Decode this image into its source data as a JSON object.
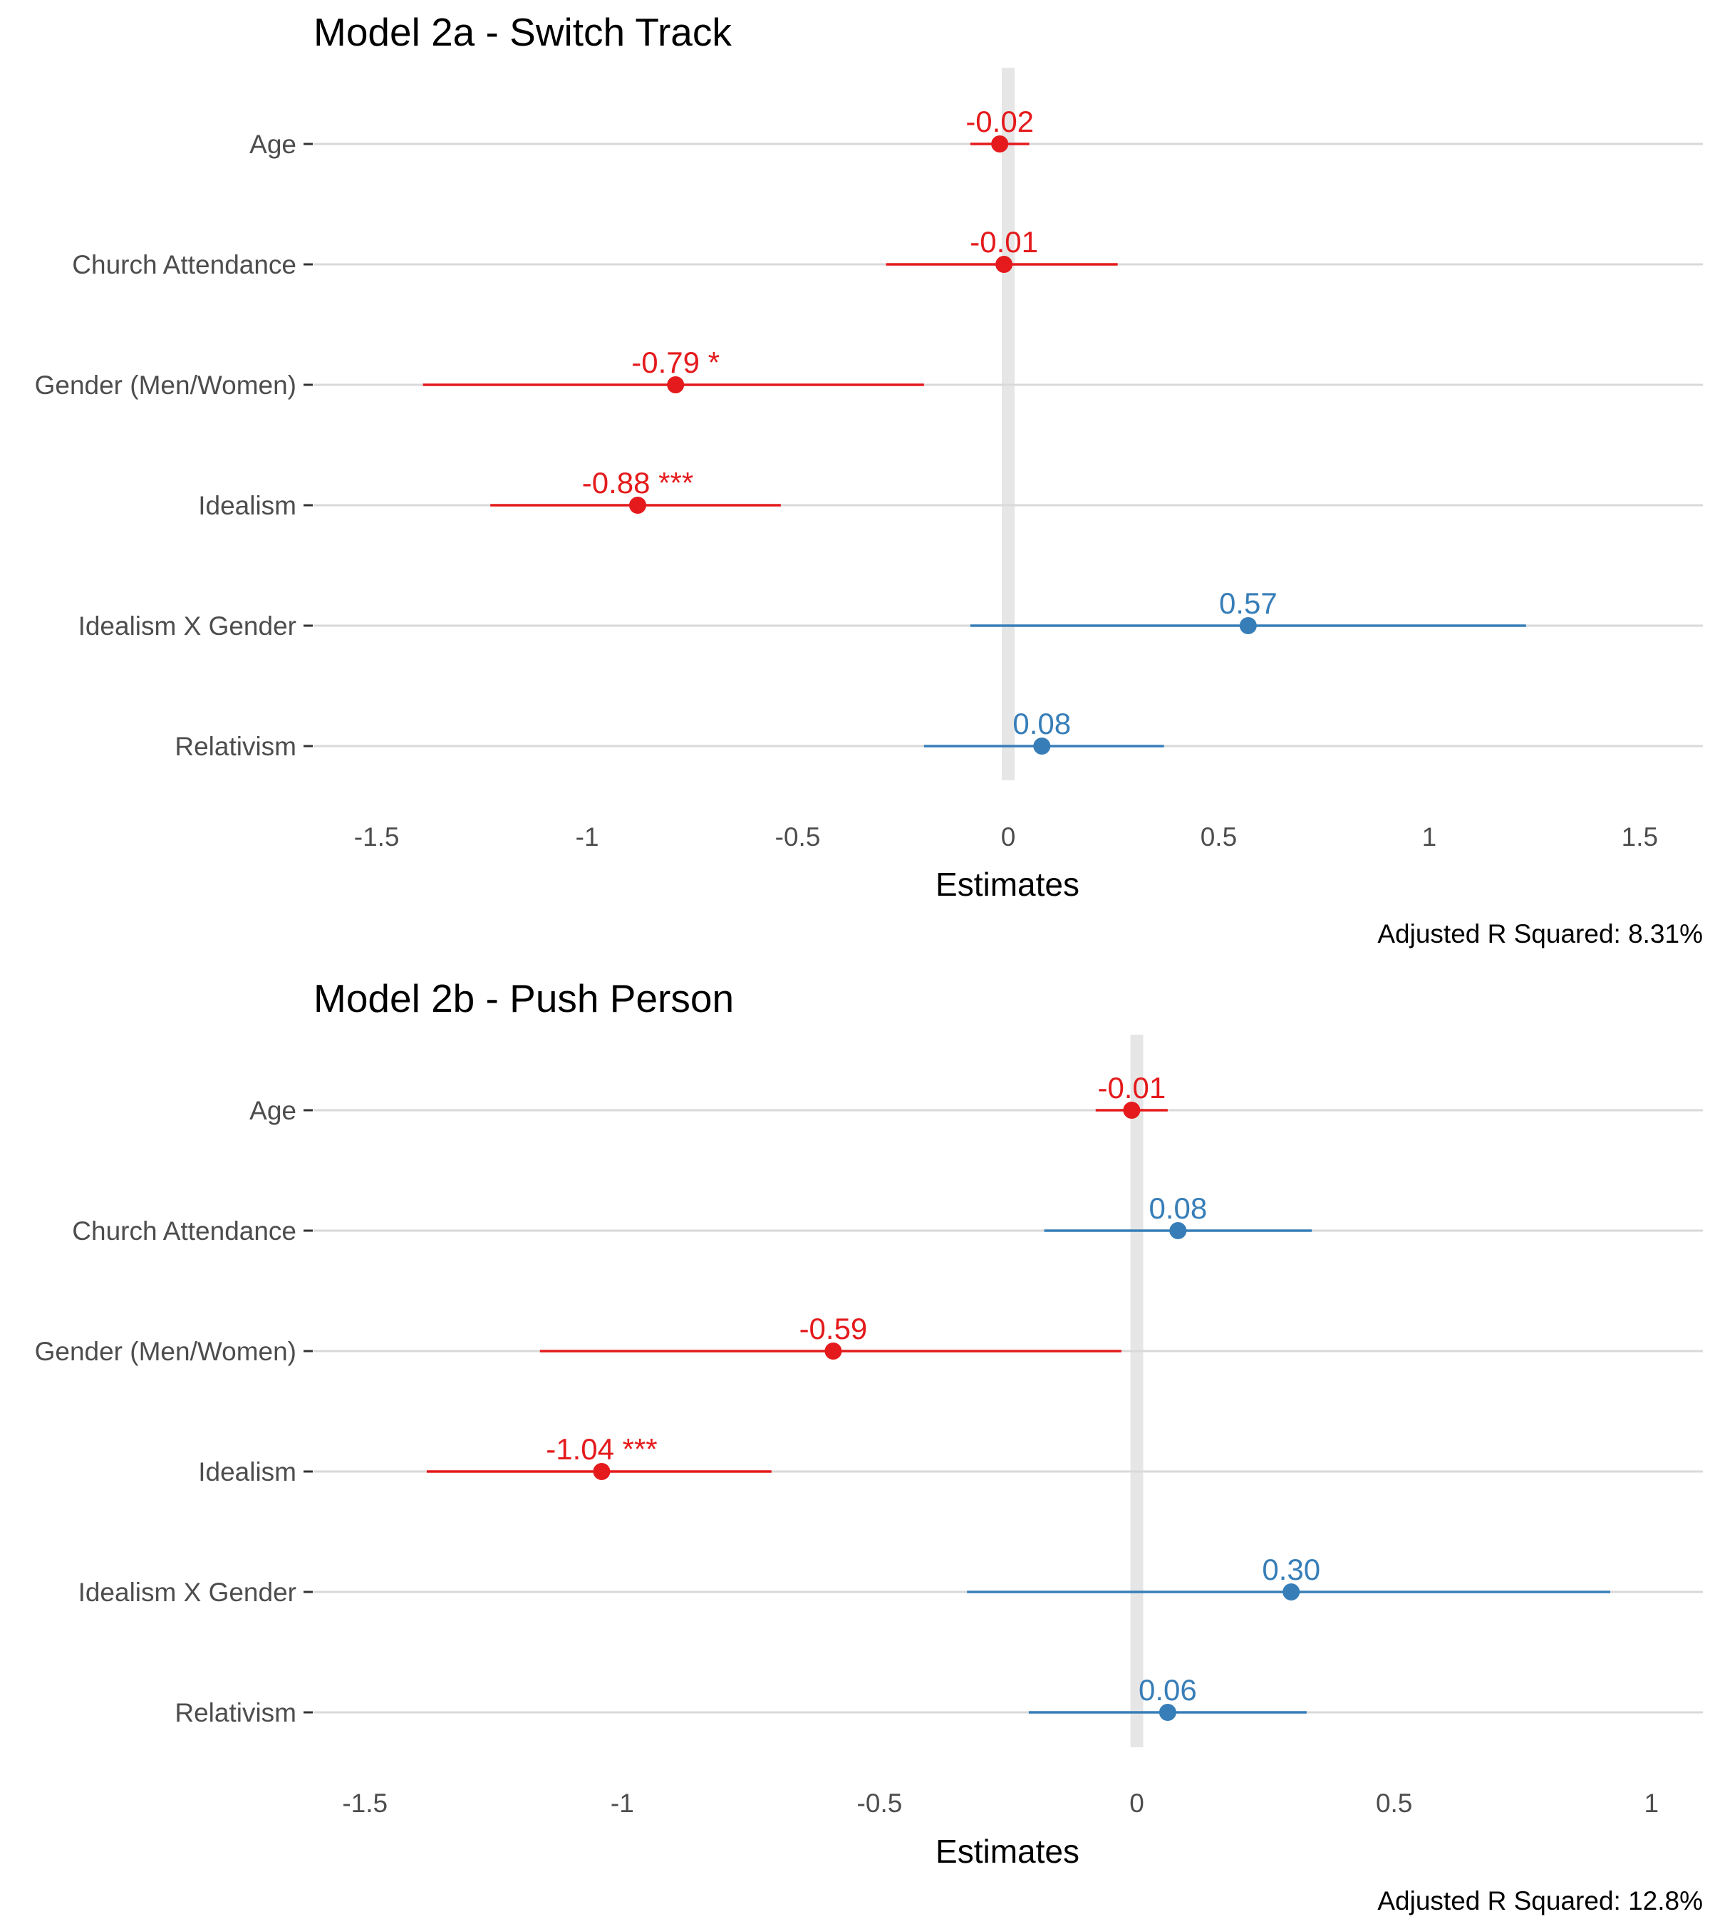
{
  "colors": {
    "negative": "#e41a1c",
    "positive": "#377eb8",
    "gridline": "#d9d9d9",
    "zero_band": "#e6e6e6",
    "tick_text": "#4d4d4d",
    "title_text": "#000000"
  },
  "chart_data": [
    {
      "type": "forest",
      "title": "Model 2a - Switch Track",
      "xlabel": "Estimates",
      "caption": "Adjusted R Squared: 8.31%",
      "xlim": [
        -1.65,
        1.65
      ],
      "xticks": [
        -1.5,
        -1,
        -0.5,
        0,
        0.5,
        1,
        1.5
      ],
      "xtick_labels": [
        "-1.5",
        "-1",
        "-0.5",
        "0",
        "0.5",
        "1",
        "1.5"
      ],
      "terms": [
        {
          "term": "Age",
          "estimate": -0.02,
          "ci_low": -0.09,
          "ci_high": 0.05,
          "label": "-0.02"
        },
        {
          "term": "Church Attendance",
          "estimate": -0.01,
          "ci_low": -0.29,
          "ci_high": 0.26,
          "label": "-0.01"
        },
        {
          "term": "Gender (Men/Women)",
          "estimate": -0.79,
          "ci_low": -1.39,
          "ci_high": -0.2,
          "label": "-0.79 *"
        },
        {
          "term": "Idealism",
          "estimate": -0.88,
          "ci_low": -1.23,
          "ci_high": -0.54,
          "label": "-0.88 ***"
        },
        {
          "term": "Idealism X Gender",
          "estimate": 0.57,
          "ci_low": -0.09,
          "ci_high": 1.23,
          "label": "0.57"
        },
        {
          "term": "Relativism",
          "estimate": 0.08,
          "ci_low": -0.2,
          "ci_high": 0.37,
          "label": "0.08"
        }
      ]
    },
    {
      "type": "forest",
      "title": "Model 2b - Push Person",
      "xlabel": "Estimates",
      "caption": "Adjusted R Squared: 12.8%",
      "xlim": [
        -1.6,
        1.1
      ],
      "xticks": [
        -1.5,
        -1,
        -0.5,
        0,
        0.5,
        1
      ],
      "xtick_labels": [
        "-1.5",
        "-1",
        "-0.5",
        "0",
        "0.5",
        "1"
      ],
      "terms": [
        {
          "term": "Age",
          "estimate": -0.01,
          "ci_low": -0.08,
          "ci_high": 0.06,
          "label": "-0.01"
        },
        {
          "term": "Church Attendance",
          "estimate": 0.08,
          "ci_low": -0.18,
          "ci_high": 0.34,
          "label": "0.08"
        },
        {
          "term": "Gender (Men/Women)",
          "estimate": -0.59,
          "ci_low": -1.16,
          "ci_high": -0.03,
          "label": "-0.59"
        },
        {
          "term": "Idealism",
          "estimate": -1.04,
          "ci_low": -1.38,
          "ci_high": -0.71,
          "label": "-1.04 ***"
        },
        {
          "term": "Idealism X Gender",
          "estimate": 0.3,
          "ci_low": -0.33,
          "ci_high": 0.92,
          "label": "0.30"
        },
        {
          "term": "Relativism",
          "estimate": 0.06,
          "ci_low": -0.21,
          "ci_high": 0.33,
          "label": "0.06"
        }
      ]
    }
  ]
}
